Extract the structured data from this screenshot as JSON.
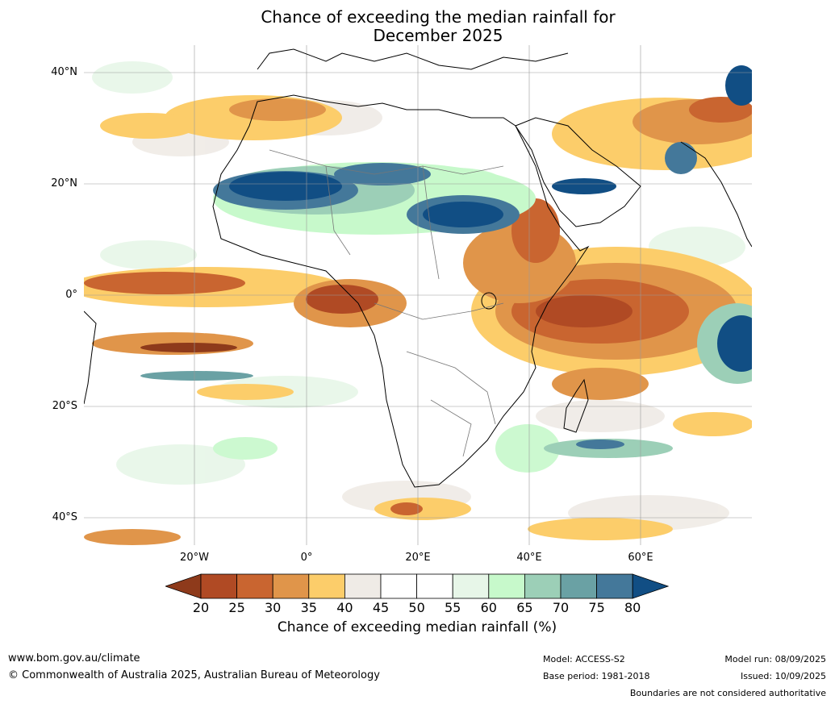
{
  "title_line1": "Chance of exceeding the median rainfall for",
  "title_line2": "December 2025",
  "map": {
    "lat_labels": [
      "40°N",
      "20°N",
      "0°",
      "20°S",
      "40°S"
    ],
    "lon_labels": [
      "20°W",
      "0°",
      "20°E",
      "40°E",
      "60°E"
    ]
  },
  "colorbar": {
    "label": "Chance of exceeding median rainfall (%)",
    "ticks": [
      "20",
      "25",
      "30",
      "35",
      "40",
      "45",
      "50",
      "55",
      "60",
      "65",
      "70",
      "75",
      "80"
    ],
    "colors": [
      "#8e3a1b",
      "#b04a24",
      "#c96530",
      "#e0954a",
      "#fccd6a",
      "#efebe6",
      "#ffffff",
      "#ffffff",
      "#e7f6e8",
      "#c7f9cb",
      "#9ccfb7",
      "#6aa1a4",
      "#44789a",
      "#114e84"
    ]
  },
  "footer": {
    "website": "www.bom.gov.au/climate",
    "copyright": "© Commonwealth of Australia 2025, Australian Bureau of Meteorology",
    "model": "Model: ACCESS-S2",
    "base_period": "Base period: 1981-2018",
    "model_run": "Model run: 08/09/2025",
    "issued": "Issued: 10/09/2025",
    "disclaimer": "Boundaries are not considered authoritative"
  }
}
